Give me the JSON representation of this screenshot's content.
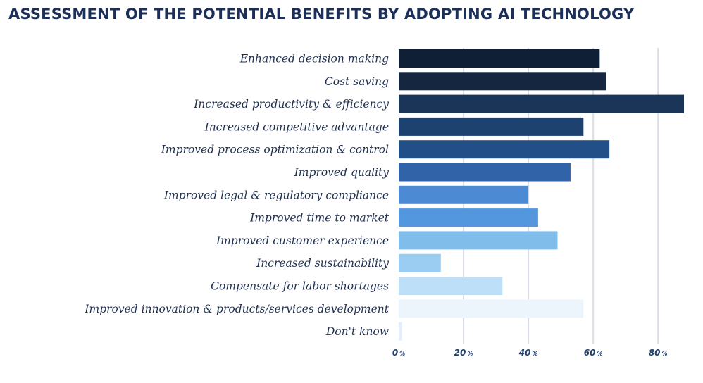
{
  "chart_data": {
    "type": "bar",
    "orientation": "horizontal",
    "title": "ASSESSMENT OF THE POTENTIAL BENEFITS BY ADOPTING AI TECHNOLOGY",
    "categories": [
      "Enhanced decision making",
      "Cost saving",
      "Increased productivity & efficiency",
      "Increased competitive advantage",
      "Improved process optimization & control",
      "Improved quality",
      "Improved legal & regulatory compliance",
      "Improved time to market",
      "Improved customer experience",
      "Increased sustainability",
      "Compensate for labor shortages",
      "Improved innovation & products/services development",
      "Don't know"
    ],
    "values": [
      62,
      64,
      88,
      57,
      65,
      53,
      40,
      43,
      49,
      13,
      32,
      57,
      1
    ],
    "colors": [
      "#0f1f35",
      "#142640",
      "#1b3558",
      "#1d4270",
      "#234f89",
      "#3163a8",
      "#4d8ad4",
      "#5397df",
      "#80bdeb",
      "#9bcdf2",
      "#bde0f8",
      "#ecf5fc",
      "#e4effb"
    ],
    "xlim": [
      0,
      88
    ],
    "xticks": [
      0,
      20,
      40,
      60,
      80
    ],
    "tick_labels": [
      "0",
      "20",
      "40",
      "60",
      "80"
    ],
    "tick_unit": "%",
    "grid": "vertical"
  }
}
